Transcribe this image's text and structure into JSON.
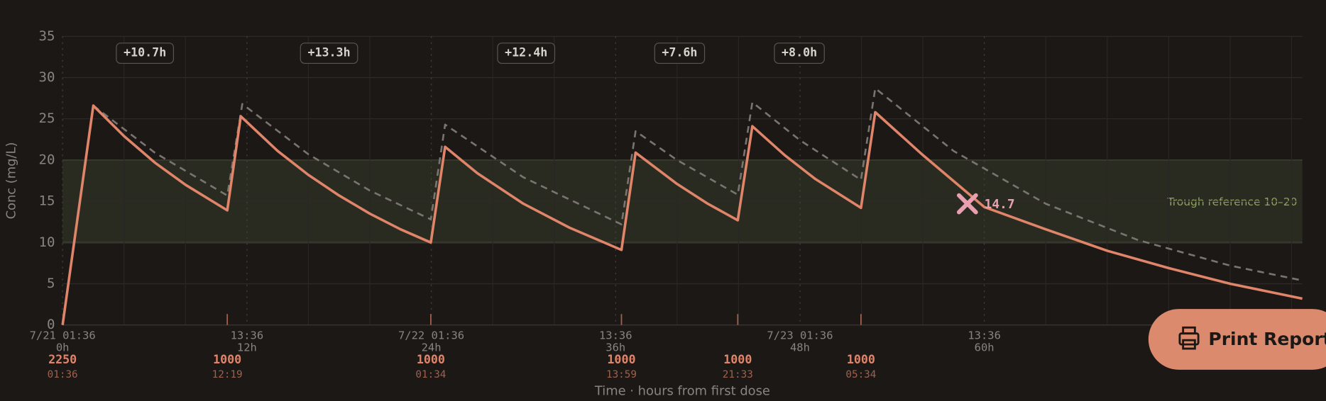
{
  "chart_data": {
    "type": "line",
    "y_label": "Conc (mg/L)",
    "x_label": "Time · hours from first dose",
    "xlim": [
      0,
      80.7
    ],
    "ylim": [
      0,
      35
    ],
    "yticks": [
      0,
      5,
      10,
      15,
      20,
      25,
      30,
      35
    ],
    "xticks": [
      {
        "value": 0,
        "label": "7/21 01:36",
        "hours": "0h"
      },
      {
        "value": 12,
        "label": "13:36",
        "hours": "12h"
      },
      {
        "value": 24,
        "label": "7/22 01:36",
        "hours": "24h"
      },
      {
        "value": 36,
        "label": "13:36",
        "hours": "36h"
      },
      {
        "value": 48,
        "label": "7/23 01:36",
        "hours": "48h"
      },
      {
        "value": 60,
        "label": "13:36",
        "hours": "60h"
      }
    ],
    "xminor": [
      4,
      8,
      16,
      20,
      28,
      32,
      40,
      44,
      52,
      56,
      64,
      68,
      72,
      76,
      80
    ],
    "reference_band": [
      10,
      20
    ],
    "reference_label": "Trough reference 10–20",
    "series": [
      {
        "color": "#e0856a",
        "dashed": false,
        "x": [
          0,
          2,
          4,
          6,
          8,
          10.72,
          11.6,
          14,
          16,
          18,
          20,
          22,
          23.97,
          24.9,
          27,
          30,
          33,
          36.38,
          37.3,
          40,
          42,
          43.95,
          44.9,
          47,
          49,
          51.97,
          52.9,
          56,
          60,
          64,
          68,
          72,
          76,
          80.7
        ],
        "values": [
          0,
          26.6,
          22.9,
          19.7,
          17.0,
          13.9,
          25.3,
          21.1,
          18.2,
          15.7,
          13.5,
          11.6,
          10.0,
          21.6,
          18.4,
          14.7,
          11.8,
          9.1,
          20.9,
          17.1,
          14.7,
          12.7,
          24.1,
          20.6,
          17.7,
          14.2,
          25.8,
          20.6,
          14.3,
          11.6,
          9.0,
          6.9,
          5.0,
          3.2
        ]
      },
      {
        "color": "#7a7470",
        "dashed": true,
        "x": [
          2,
          6,
          10.72,
          11.7,
          16,
          20,
          23.97,
          24.9,
          30,
          36.38,
          37.3,
          40,
          43.95,
          44.9,
          48,
          51.97,
          52.9,
          58,
          64,
          70,
          76,
          80.7
        ],
        "values": [
          26.6,
          20.9,
          15.7,
          26.8,
          20.7,
          16.3,
          12.8,
          24.3,
          17.9,
          12.2,
          23.5,
          20.0,
          15.8,
          27.0,
          22.4,
          17.6,
          28.7,
          21.1,
          14.7,
          10.3,
          7.2,
          5.4
        ]
      }
    ],
    "measurement": {
      "x": 58.9,
      "value": 14.7
    },
    "doses": [
      {
        "time": 0,
        "amount": 2250,
        "clock": "01:36"
      },
      {
        "time": 10.72,
        "amount": 1000,
        "clock": "12:19"
      },
      {
        "time": 23.97,
        "amount": 1000,
        "clock": "01:34"
      },
      {
        "time": 36.38,
        "amount": 1000,
        "clock": "13:59"
      },
      {
        "time": 43.95,
        "amount": 1000,
        "clock": "21:33"
      },
      {
        "time": 51.97,
        "amount": 1000,
        "clock": "05:34"
      }
    ],
    "intervals": [
      10.7,
      13.3,
      12.4,
      7.6,
      8.0
    ],
    "interval_labels": [
      "+10.7h",
      "+13.3h",
      "+12.4h",
      "+7.6h",
      "+8.0h"
    ]
  },
  "button": {
    "label": "Print Report"
  }
}
